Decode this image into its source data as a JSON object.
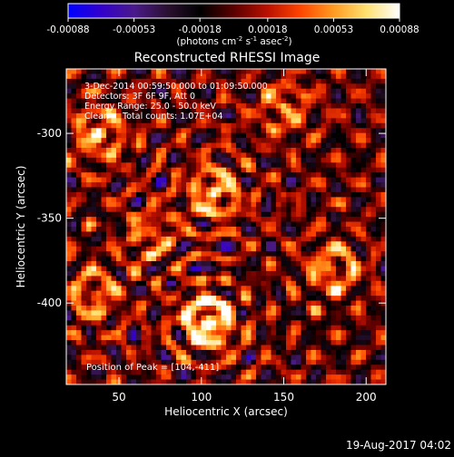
{
  "chart_data": {
    "type": "heatmap",
    "title": "Reconstructed RHESSI Image",
    "xlabel": "Heliocentric X (arcsec)",
    "ylabel": "Heliocentric Y (arcsec)",
    "xlim": [
      18,
      212
    ],
    "ylim": [
      -448,
      -262
    ],
    "x_ticks": [
      "50",
      "100",
      "150",
      "200"
    ],
    "x_tick_values": [
      50,
      100,
      150,
      200
    ],
    "y_ticks": [
      "-300",
      "-350",
      "-400"
    ],
    "y_tick_values": [
      -300,
      -350,
      -400
    ],
    "colorbar": {
      "ticks": [
        "-0.00088",
        "-0.00053",
        "-0.00018",
        "0.00018",
        "0.00053",
        "0.00088"
      ],
      "tick_values": [
        -0.00088,
        -0.00053,
        -0.00018,
        0.00018,
        0.00053,
        0.00088
      ],
      "label_prefix": "(photons cm",
      "label_exp1": "-2",
      "label_mid": " s",
      "label_exp2": "-1",
      "label_mid2": " asec",
      "label_exp3": "-2",
      "label_suffix": ")",
      "colors": [
        "#0000ff",
        "#3300cc",
        "#4a1a8a",
        "#2a1030",
        "#000000",
        "#5a0000",
        "#b81000",
        "#ff4400",
        "#ff9a20",
        "#ffe070",
        "#ffffff"
      ]
    },
    "annotations": [
      "3-Dec-2014 00:59:50.000 to 01:09:50.000",
      "Detectors: 3F 6F 9F, Att 0",
      "Energy Range: 25.0 - 50.0 keV",
      "Clean     Total counts: 1.07E+04"
    ],
    "peak_label": "Position of Peak = [104,-411]",
    "peak": [
      104,
      -411
    ],
    "sources": [
      {
        "x": 104,
        "y": -411,
        "value": 0.00088
      },
      {
        "x": 108,
        "y": -335,
        "value": 0.0006
      },
      {
        "x": 38,
        "y": -300,
        "value": 0.00055
      },
      {
        "x": 180,
        "y": -380,
        "value": 0.0005
      },
      {
        "x": 35,
        "y": -395,
        "value": 0.00045
      },
      {
        "x": 150,
        "y": -285,
        "value": 0.0004
      },
      {
        "x": 70,
        "y": -360,
        "value": 0.0004
      }
    ],
    "grid": false
  },
  "timestamp": "19-Aug-2017 04:02"
}
